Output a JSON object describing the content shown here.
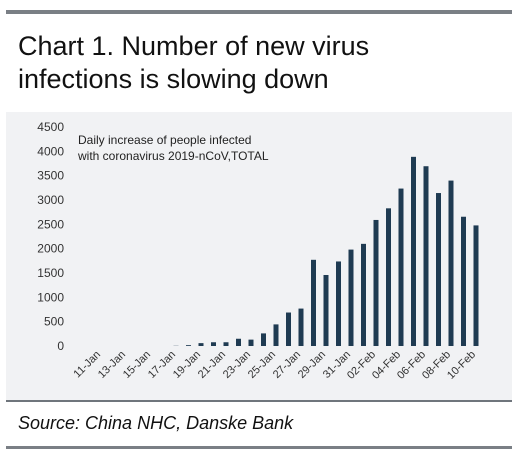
{
  "header": {
    "title_line1": "Chart 1. Number of new virus",
    "title_line2": "infections is slowing down"
  },
  "footer": {
    "source": "Source: China NHC, Danske Bank"
  },
  "colors": {
    "bar": "#1f3b52",
    "panel": "#f1f2f4",
    "rule": "#7a7f85"
  },
  "chart_data": {
    "type": "bar",
    "title": "",
    "xlabel": "",
    "ylabel": "",
    "ylim": [
      0,
      4500
    ],
    "yticks": [
      0,
      500,
      1000,
      1500,
      2000,
      2500,
      3000,
      3500,
      4000,
      4500
    ],
    "legend": "none",
    "grid": false,
    "annotation_line1": "Daily increase of people infected",
    "annotation_line2": "with coronavirus 2019-nCoV,TOTAL",
    "tick_labels": [
      "11-Jan",
      "13-Jan",
      "15-Jan",
      "17-Jan",
      "19-Jan",
      "21-Jan",
      "23-Jan",
      "25-Jan",
      "27-Jan",
      "29-Jan",
      "31-Jan",
      "02-Feb",
      "04-Feb",
      "06-Feb",
      "08-Feb",
      "10-Feb"
    ],
    "categories": [
      "11-Jan",
      "12-Jan",
      "13-Jan",
      "14-Jan",
      "15-Jan",
      "16-Jan",
      "17-Jan",
      "18-Jan",
      "19-Jan",
      "20-Jan",
      "21-Jan",
      "22-Jan",
      "23-Jan",
      "24-Jan",
      "25-Jan",
      "26-Jan",
      "27-Jan",
      "28-Jan",
      "29-Jan",
      "30-Jan",
      "31-Jan",
      "01-Feb",
      "02-Feb",
      "03-Feb",
      "04-Feb",
      "05-Feb",
      "06-Feb",
      "07-Feb",
      "08-Feb",
      "09-Feb",
      "10-Feb"
    ],
    "values": [
      0,
      0,
      0,
      0,
      0,
      0,
      4,
      17,
      59,
      77,
      77,
      149,
      131,
      259,
      444,
      688,
      769,
      1771,
      1459,
      1737,
      1981,
      2099,
      2590,
      2829,
      3235,
      3887,
      3694,
      3143,
      3399,
      2656,
      2478
    ]
  }
}
